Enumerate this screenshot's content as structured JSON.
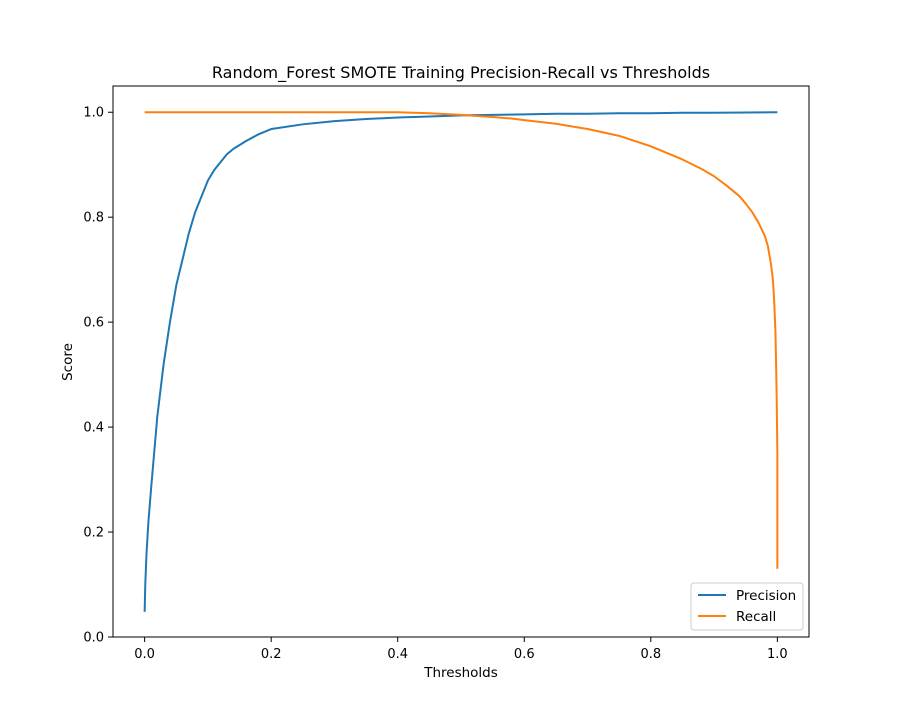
{
  "chart_data": {
    "type": "line",
    "title": "Random_Forest SMOTE Training Precision-Recall vs Thresholds",
    "xlabel": "Thresholds",
    "ylabel": "Score",
    "xlim": [
      -0.05,
      1.05
    ],
    "ylim": [
      0.0,
      1.05
    ],
    "xticks": [
      0.0,
      0.2,
      0.4,
      0.6,
      0.8,
      1.0
    ],
    "xtick_labels": [
      "0.0",
      "0.2",
      "0.4",
      "0.6",
      "0.8",
      "1.0"
    ],
    "yticks": [
      0.0,
      0.2,
      0.4,
      0.6,
      0.8,
      1.0
    ],
    "ytick_labels": [
      "0.0",
      "0.2",
      "0.4",
      "0.6",
      "0.8",
      "1.0"
    ],
    "grid": false,
    "legend_position": "lower right",
    "series": [
      {
        "name": "Precision",
        "color": "#1f77b4",
        "x": [
          0.0,
          0.001,
          0.003,
          0.006,
          0.01,
          0.015,
          0.02,
          0.03,
          0.04,
          0.05,
          0.06,
          0.07,
          0.08,
          0.09,
          0.1,
          0.11,
          0.12,
          0.13,
          0.14,
          0.16,
          0.18,
          0.2,
          0.25,
          0.3,
          0.35,
          0.4,
          0.45,
          0.5,
          0.55,
          0.6,
          0.65,
          0.7,
          0.75,
          0.8,
          0.85,
          0.9,
          0.95,
          1.0
        ],
        "y": [
          0.048,
          0.1,
          0.16,
          0.22,
          0.28,
          0.35,
          0.42,
          0.52,
          0.6,
          0.67,
          0.72,
          0.77,
          0.81,
          0.84,
          0.87,
          0.89,
          0.905,
          0.92,
          0.93,
          0.945,
          0.958,
          0.968,
          0.977,
          0.983,
          0.987,
          0.99,
          0.992,
          0.994,
          0.995,
          0.996,
          0.997,
          0.997,
          0.998,
          0.998,
          0.999,
          0.999,
          0.9995,
          1.0
        ]
      },
      {
        "name": "Recall",
        "color": "#ff7f0e",
        "x": [
          0.0,
          0.1,
          0.2,
          0.3,
          0.35,
          0.4,
          0.45,
          0.5,
          0.55,
          0.58,
          0.6,
          0.65,
          0.7,
          0.75,
          0.8,
          0.85,
          0.88,
          0.9,
          0.92,
          0.94,
          0.95,
          0.96,
          0.97,
          0.98,
          0.985,
          0.99,
          0.993,
          0.995,
          0.997,
          0.998,
          0.999,
          1.0,
          1.0,
          1.0
        ],
        "y": [
          1.0,
          1.0,
          1.0,
          1.0,
          1.0,
          1.0,
          0.998,
          0.995,
          0.991,
          0.988,
          0.985,
          0.978,
          0.968,
          0.955,
          0.935,
          0.91,
          0.892,
          0.878,
          0.86,
          0.84,
          0.826,
          0.81,
          0.79,
          0.765,
          0.745,
          0.71,
          0.68,
          0.64,
          0.58,
          0.52,
          0.45,
          0.35,
          0.2,
          0.13
        ]
      }
    ]
  }
}
